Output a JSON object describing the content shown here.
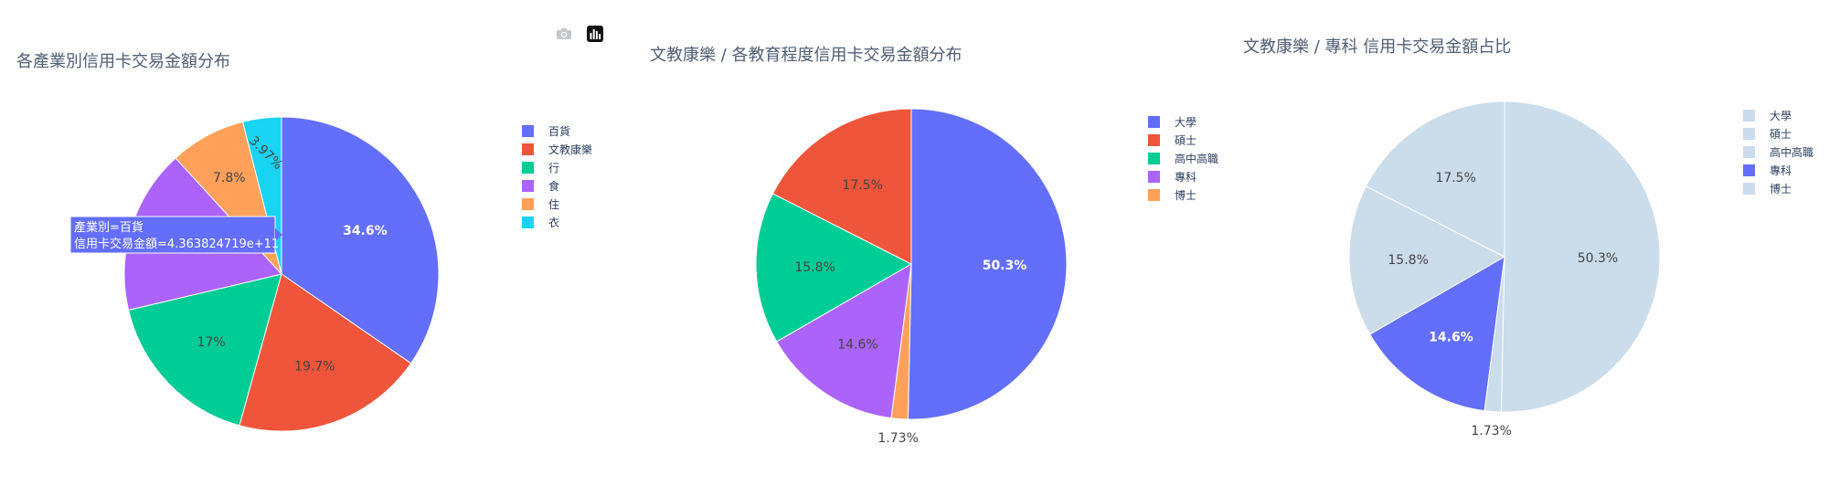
{
  "modebar": {
    "camera_icon": "camera-icon",
    "plotly_logo_icon": "plotly-logo-icon"
  },
  "colors": {
    "blue": "#636efa",
    "red": "#ef553b",
    "green": "#00cc96",
    "purple": "#ab63fa",
    "orange": "#ffa15a",
    "cyan": "#19d3f3",
    "muted": "#cbdceb",
    "title": "#4f5e73",
    "legend_text": "#2a3f5f"
  },
  "tooltip": {
    "line1": "產業別=百貨",
    "line2": "信用卡交易金額=4.363824719e+11"
  },
  "chart_data": [
    {
      "type": "pie",
      "title": "各產業別信用卡交易金額分布",
      "categories": [
        "百貨",
        "文教康樂",
        "行",
        "食",
        "住",
        "衣"
      ],
      "values": [
        34.6,
        19.7,
        17,
        16.9,
        7.8,
        3.97
      ],
      "value_labels": [
        "34.6%",
        "19.7%",
        "17%",
        "16.9%",
        "7.8%",
        "3.97%"
      ],
      "colors": [
        "#636efa",
        "#ef553b",
        "#00cc96",
        "#ab63fa",
        "#ffa15a",
        "#19d3f3"
      ],
      "legend": [
        "百貨",
        "文教康樂",
        "行",
        "食",
        "住",
        "衣"
      ],
      "legend_colors": [
        "#636efa",
        "#ef553b",
        "#00cc96",
        "#ab63fa",
        "#ffa15a",
        "#19d3f3"
      ],
      "sort": "descending",
      "legend_position": "right"
    },
    {
      "type": "pie",
      "title": "文教康樂 / 各教育程度信用卡交易金額分布",
      "categories": [
        "大學",
        "博士",
        "專科",
        "高中高職",
        "碩士"
      ],
      "values": [
        50.3,
        1.73,
        14.6,
        15.8,
        17.5
      ],
      "value_labels": [
        "50.3%",
        "1.73%",
        "14.6%",
        "15.8%",
        "17.5%"
      ],
      "colors": [
        "#636efa",
        "#ffa15a",
        "#ab63fa",
        "#00cc96",
        "#ef553b"
      ],
      "legend": [
        "大學",
        "碩士",
        "高中高職",
        "專科",
        "博士"
      ],
      "legend_colors": [
        "#636efa",
        "#ef553b",
        "#00cc96",
        "#ab63fa",
        "#ffa15a"
      ],
      "sort": "none",
      "legend_position": "right"
    },
    {
      "type": "pie",
      "title": "文教康樂 / 專科 信用卡交易金額占比",
      "categories": [
        "大學",
        "博士",
        "專科",
        "高中高職",
        "碩士"
      ],
      "values": [
        50.3,
        1.73,
        14.6,
        15.8,
        17.5
      ],
      "value_labels": [
        "50.3%",
        "1.73%",
        "14.6%",
        "15.8%",
        "17.5%"
      ],
      "colors": [
        "#cbdceb",
        "#cbdceb",
        "#636efa",
        "#cbdceb",
        "#cbdceb"
      ],
      "legend": [
        "大學",
        "碩士",
        "高中高職",
        "專科",
        "博士"
      ],
      "legend_colors": [
        "#cbdceb",
        "#cbdceb",
        "#cbdceb",
        "#636efa",
        "#cbdceb"
      ],
      "sort": "none",
      "legend_position": "right"
    }
  ]
}
